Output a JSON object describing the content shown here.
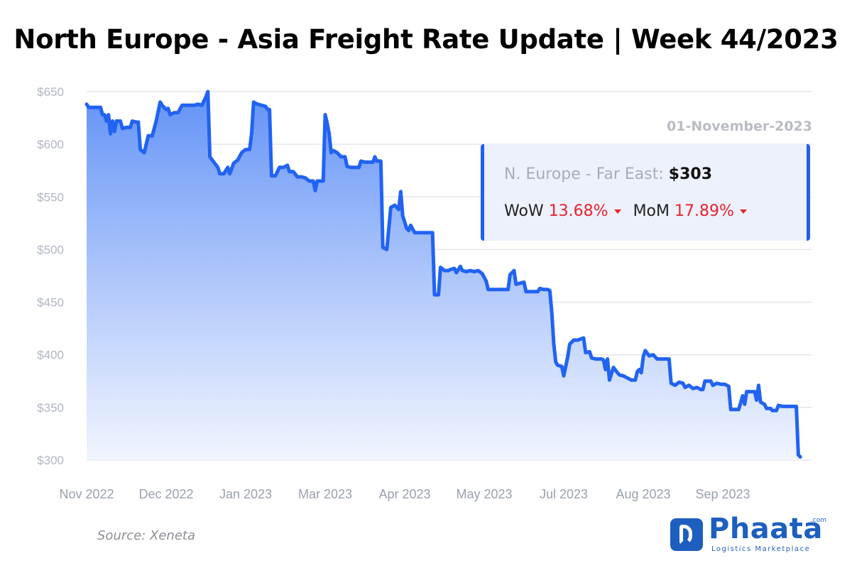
{
  "chart_data": {
    "type": "area",
    "title": "North Europe - Asia Freight Rate Update | Week 44/2023",
    "date_label": "01-November-2023",
    "ylim": [
      300,
      650
    ],
    "yticks": [
      300,
      350,
      400,
      450,
      500,
      550,
      600,
      650
    ],
    "ytick_labels": [
      "$300",
      "$350",
      "$400",
      "$450",
      "$500",
      "$550",
      "$600",
      "$650"
    ],
    "xlim": [
      0,
      365
    ],
    "xticks": [
      {
        "x": 0,
        "label": "Nov 2022"
      },
      {
        "x": 40,
        "label": "Dec 2022"
      },
      {
        "x": 80,
        "label": "Jan 2023"
      },
      {
        "x": 120,
        "label": "Mar 2023"
      },
      {
        "x": 160,
        "label": "Apr 2023"
      },
      {
        "x": 200,
        "label": "May 2023"
      },
      {
        "x": 240,
        "label": "Jul 2023"
      },
      {
        "x": 280,
        "label": "Aug 2023"
      },
      {
        "x": 320,
        "label": "Sep 2023"
      }
    ],
    "grid": true,
    "series": [
      {
        "color": "#2163f2",
        "points": [
          [
            0,
            638
          ],
          [
            1,
            635
          ],
          [
            3,
            635
          ],
          [
            5,
            635
          ],
          [
            7,
            635
          ],
          [
            8,
            628
          ],
          [
            9,
            628
          ],
          [
            10,
            622
          ],
          [
            11,
            628
          ],
          [
            12,
            610
          ],
          [
            13,
            622
          ],
          [
            14,
            612
          ],
          [
            15,
            622
          ],
          [
            17,
            622
          ],
          [
            18,
            615
          ],
          [
            20,
            616
          ],
          [
            22,
            616
          ],
          [
            23,
            622
          ],
          [
            25,
            621
          ],
          [
            26,
            621
          ],
          [
            27,
            595
          ],
          [
            29,
            592
          ],
          [
            31,
            608
          ],
          [
            33,
            608
          ],
          [
            35,
            622
          ],
          [
            37,
            640
          ],
          [
            38,
            637
          ],
          [
            40,
            633
          ],
          [
            41,
            634
          ],
          [
            42,
            628
          ],
          [
            44,
            630
          ],
          [
            46,
            630
          ],
          [
            48,
            637
          ],
          [
            50,
            637
          ],
          [
            52,
            637
          ],
          [
            54,
            637
          ],
          [
            56,
            638
          ],
          [
            58,
            637
          ],
          [
            60,
            645
          ],
          [
            61,
            650
          ],
          [
            62,
            588
          ],
          [
            64,
            583
          ],
          [
            66,
            578
          ],
          [
            67,
            572
          ],
          [
            69,
            572
          ],
          [
            71,
            578
          ],
          [
            72,
            572
          ],
          [
            74,
            582
          ],
          [
            76,
            585
          ],
          [
            78,
            592
          ],
          [
            80,
            595
          ],
          [
            82,
            595
          ],
          [
            83,
            610
          ],
          [
            84,
            640
          ],
          [
            86,
            638
          ],
          [
            88,
            637
          ],
          [
            90,
            636
          ],
          [
            91,
            633
          ],
          [
            92,
            633
          ],
          [
            93,
            570
          ],
          [
            95,
            570
          ],
          [
            97,
            578
          ],
          [
            99,
            578
          ],
          [
            101,
            580
          ],
          [
            102,
            574
          ],
          [
            104,
            574
          ],
          [
            106,
            569
          ],
          [
            108,
            569
          ],
          [
            110,
            568
          ],
          [
            112,
            565
          ],
          [
            114,
            565
          ],
          [
            115,
            556
          ],
          [
            116,
            565
          ],
          [
            118,
            565
          ],
          [
            119,
            565
          ],
          [
            120,
            628
          ],
          [
            121,
            620
          ],
          [
            122,
            610
          ],
          [
            123,
            592
          ],
          [
            124,
            594
          ],
          [
            126,
            592
          ],
          [
            128,
            588
          ],
          [
            130,
            588
          ],
          [
            131,
            579
          ],
          [
            133,
            578
          ],
          [
            135,
            578
          ],
          [
            137,
            578
          ],
          [
            138,
            584
          ],
          [
            140,
            583
          ],
          [
            142,
            583
          ],
          [
            144,
            583
          ],
          [
            145,
            588
          ],
          [
            146,
            584
          ],
          [
            148,
            584
          ],
          [
            149,
            502
          ],
          [
            151,
            500
          ],
          [
            153,
            540
          ],
          [
            155,
            542
          ],
          [
            157,
            538
          ],
          [
            158,
            555
          ],
          [
            159,
            532
          ],
          [
            161,
            520
          ],
          [
            162,
            518
          ],
          [
            163,
            523
          ],
          [
            165,
            516
          ],
          [
            167,
            516
          ],
          [
            169,
            516
          ],
          [
            171,
            516
          ],
          [
            173,
            516
          ],
          [
            174,
            516
          ],
          [
            175,
            457
          ],
          [
            177,
            457
          ],
          [
            178,
            483
          ],
          [
            180,
            480
          ],
          [
            182,
            480
          ],
          [
            183,
            481
          ],
          [
            185,
            482
          ],
          [
            186,
            478
          ],
          [
            188,
            484
          ],
          [
            189,
            480
          ],
          [
            191,
            479
          ],
          [
            193,
            480
          ],
          [
            195,
            479
          ],
          [
            197,
            480
          ],
          [
            199,
            477
          ],
          [
            201,
            470
          ],
          [
            202,
            462
          ],
          [
            204,
            462
          ],
          [
            206,
            462
          ],
          [
            208,
            462
          ],
          [
            210,
            462
          ],
          [
            212,
            462
          ],
          [
            213,
            476
          ],
          [
            215,
            480
          ],
          [
            216,
            467
          ],
          [
            218,
            468
          ],
          [
            220,
            469
          ],
          [
            221,
            460
          ],
          [
            223,
            460
          ],
          [
            225,
            460
          ],
          [
            227,
            460
          ],
          [
            228,
            463
          ],
          [
            230,
            462
          ],
          [
            232,
            462
          ],
          [
            233,
            461
          ],
          [
            234,
            440
          ],
          [
            235,
            410
          ],
          [
            236,
            393
          ],
          [
            237,
            390
          ],
          [
            239,
            389
          ],
          [
            240,
            380
          ],
          [
            242,
            398
          ],
          [
            243,
            410
          ],
          [
            245,
            414
          ],
          [
            247,
            414
          ],
          [
            250,
            416
          ],
          [
            251,
            402
          ],
          [
            253,
            403
          ],
          [
            254,
            397
          ],
          [
            256,
            396
          ],
          [
            258,
            396
          ],
          [
            259,
            396
          ],
          [
            260,
            395
          ],
          [
            261,
            386
          ],
          [
            262,
            396
          ],
          [
            263,
            376
          ],
          [
            265,
            388
          ],
          [
            267,
            383
          ],
          [
            268,
            381
          ],
          [
            270,
            380
          ],
          [
            272,
            378
          ],
          [
            274,
            376
          ],
          [
            276,
            376
          ],
          [
            277,
            384
          ],
          [
            278,
            386
          ],
          [
            279,
            383
          ],
          [
            280,
            398
          ],
          [
            281,
            404
          ],
          [
            283,
            399
          ],
          [
            285,
            400
          ],
          [
            286,
            398
          ],
          [
            287,
            396
          ],
          [
            289,
            396
          ],
          [
            291,
            396
          ],
          [
            292,
            396
          ],
          [
            293,
            396
          ],
          [
            294,
            373
          ],
          [
            296,
            371
          ],
          [
            298,
            374
          ],
          [
            300,
            373
          ],
          [
            301,
            369
          ],
          [
            303,
            371
          ],
          [
            305,
            368
          ],
          [
            307,
            369
          ],
          [
            309,
            367
          ],
          [
            310,
            367
          ],
          [
            311,
            375
          ],
          [
            313,
            375
          ],
          [
            314,
            375
          ],
          [
            315,
            371
          ],
          [
            317,
            373
          ],
          [
            319,
            372
          ],
          [
            321,
            372
          ],
          [
            323,
            370
          ],
          [
            324,
            348
          ],
          [
            326,
            348
          ],
          [
            328,
            348
          ],
          [
            330,
            361
          ],
          [
            331,
            353
          ],
          [
            332,
            365
          ],
          [
            334,
            365
          ],
          [
            336,
            365
          ],
          [
            337,
            357
          ],
          [
            338,
            371
          ],
          [
            339,
            355
          ],
          [
            341,
            353
          ],
          [
            342,
            349
          ],
          [
            344,
            349
          ],
          [
            345,
            347
          ],
          [
            347,
            347
          ],
          [
            348,
            352
          ],
          [
            350,
            351
          ],
          [
            352,
            351
          ],
          [
            354,
            351
          ],
          [
            355,
            351
          ],
          [
            356,
            351
          ],
          [
            357,
            351
          ],
          [
            358,
            305
          ],
          [
            359,
            303
          ]
        ]
      }
    ]
  },
  "info_box": {
    "route_label": "N. Europe - Far East:",
    "price": "$303",
    "wow_label": "WoW",
    "wow_value": "13.68%",
    "mom_label": "MoM",
    "mom_value": "17.89%"
  },
  "footer": {
    "source": "Source: Xeneta",
    "logo_text": "Phaata",
    "logo_com": ".com",
    "logo_tagline": "Logistics Marketplace"
  },
  "colors": {
    "line": "#2163f2",
    "fill_top": "#5b8df6",
    "fill_bottom": "#eef3fe",
    "accent": "#2060f0",
    "negative": "#e8222c"
  }
}
